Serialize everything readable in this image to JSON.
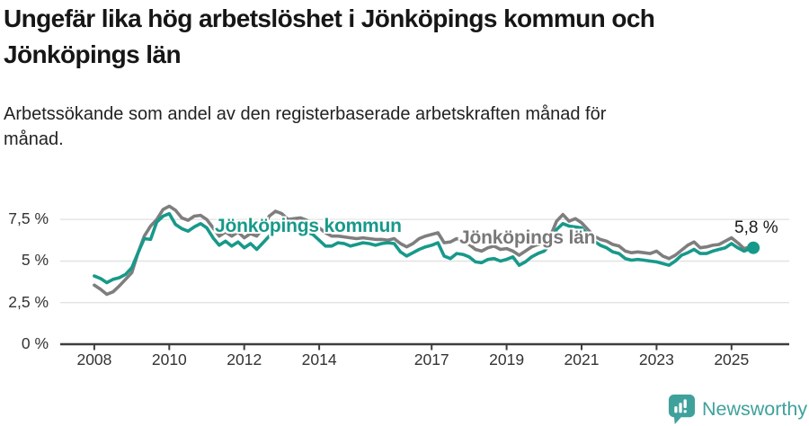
{
  "header": {
    "title": "Ungefär lika hög arbetslöshet i Jönköpings kommun och\nJönköpings län",
    "subtitle": "Arbetssökande som andel av den registerbaserade arbetskraften månad för\nmånad."
  },
  "chart_data": {
    "type": "line",
    "title": "Ungefär lika hög arbetslöshet i Jönköpings kommun och Jönköpings län",
    "subtitle": "Arbetssökande som andel av den registerbaserade arbetskraften månad för månad.",
    "grid": "horizontal",
    "legend_position": "inline-labels",
    "xlim": [
      2007.09,
      2026.54
    ],
    "ylim": [
      0,
      8.7
    ],
    "x_ticks": [
      {
        "v": 2008,
        "label": "2008"
      },
      {
        "v": 2010,
        "label": "2010"
      },
      {
        "v": 2012,
        "label": "2012"
      },
      {
        "v": 2014,
        "label": "2014"
      },
      {
        "v": 2017,
        "label": "2017"
      },
      {
        "v": 2019,
        "label": "2019"
      },
      {
        "v": 2021,
        "label": "2021"
      },
      {
        "v": 2023,
        "label": "2023"
      },
      {
        "v": 2025,
        "label": "2025"
      }
    ],
    "y_ticks": [
      {
        "v": 0,
        "label": "0 %"
      },
      {
        "v": 2.5,
        "label": "2,5 %"
      },
      {
        "v": 5,
        "label": "5 %"
      },
      {
        "v": 7.5,
        "label": "7,5 %"
      }
    ],
    "x_encoding": {
      "start_year": 2008,
      "points_per_year": 6,
      "last_point_year": 2025.583,
      "note": "values sampled every 2nd month Jan 2008 - Jul 2025, plus final point Aug 2025; estimated from pixels"
    },
    "series": [
      {
        "name": "Jönköpings kommun",
        "color": "#17998a",
        "values": [
          4.1,
          3.95,
          3.7,
          3.9,
          4.0,
          4.2,
          4.6,
          5.5,
          6.35,
          6.3,
          7.35,
          7.7,
          7.85,
          7.2,
          6.95,
          6.8,
          7.05,
          7.25,
          7.0,
          6.4,
          5.95,
          6.2,
          5.9,
          6.15,
          5.8,
          6.05,
          5.7,
          6.1,
          6.5,
          6.85,
          7.0,
          6.85,
          6.9,
          6.85,
          6.75,
          6.6,
          6.25,
          5.9,
          5.9,
          6.1,
          6.05,
          5.9,
          6.0,
          6.1,
          6.05,
          5.95,
          6.05,
          6.1,
          6.05,
          5.55,
          5.3,
          5.5,
          5.7,
          5.85,
          5.95,
          6.1,
          5.3,
          5.15,
          5.45,
          5.4,
          5.25,
          4.95,
          4.9,
          5.1,
          5.15,
          5.0,
          5.1,
          5.25,
          4.75,
          4.95,
          5.25,
          5.45,
          5.6,
          6.0,
          6.9,
          7.25,
          7.1,
          7.05,
          7.0,
          6.6,
          6.2,
          5.95,
          5.8,
          5.55,
          5.45,
          5.15,
          5.05,
          5.1,
          5.05,
          5.0,
          4.95,
          4.85,
          4.75,
          5.0,
          5.35,
          5.5,
          5.7,
          5.45,
          5.45,
          5.6,
          5.7,
          5.8,
          6.05,
          5.8,
          5.6,
          5.75,
          5.8
        ]
      },
      {
        "name": "Jönköpings län",
        "color": "#7e7e7e",
        "values": [
          3.55,
          3.3,
          3.0,
          3.15,
          3.5,
          3.9,
          4.3,
          5.5,
          6.5,
          7.1,
          7.5,
          8.1,
          8.3,
          8.05,
          7.6,
          7.45,
          7.7,
          7.75,
          7.5,
          7.0,
          6.5,
          6.75,
          6.5,
          6.75,
          6.4,
          6.65,
          6.5,
          7.0,
          7.7,
          8.0,
          7.85,
          7.5,
          7.55,
          7.6,
          7.45,
          7.25,
          7.0,
          6.7,
          6.5,
          6.5,
          6.45,
          6.4,
          6.35,
          6.4,
          6.35,
          6.3,
          6.3,
          6.25,
          6.35,
          6.05,
          5.85,
          6.05,
          6.35,
          6.5,
          6.6,
          6.7,
          6.1,
          6.15,
          6.35,
          6.2,
          6.0,
          5.7,
          5.6,
          5.8,
          5.9,
          5.7,
          5.75,
          5.6,
          5.35,
          5.6,
          5.85,
          6.0,
          6.1,
          6.5,
          7.4,
          7.8,
          7.4,
          7.55,
          7.3,
          6.9,
          6.5,
          6.3,
          6.2,
          6.0,
          5.9,
          5.6,
          5.5,
          5.55,
          5.5,
          5.45,
          5.6,
          5.3,
          5.15,
          5.35,
          5.65,
          5.95,
          6.15,
          5.8,
          5.85,
          5.95,
          6.0,
          6.2,
          6.4,
          6.1,
          5.75,
          5.85,
          5.95
        ]
      }
    ],
    "end_label": "5,8 %",
    "end_point": {
      "series": "Jönköpings kommun",
      "x": 2025.583,
      "value": 5.8
    }
  },
  "footer": {
    "brand": "Newsworthy"
  }
}
